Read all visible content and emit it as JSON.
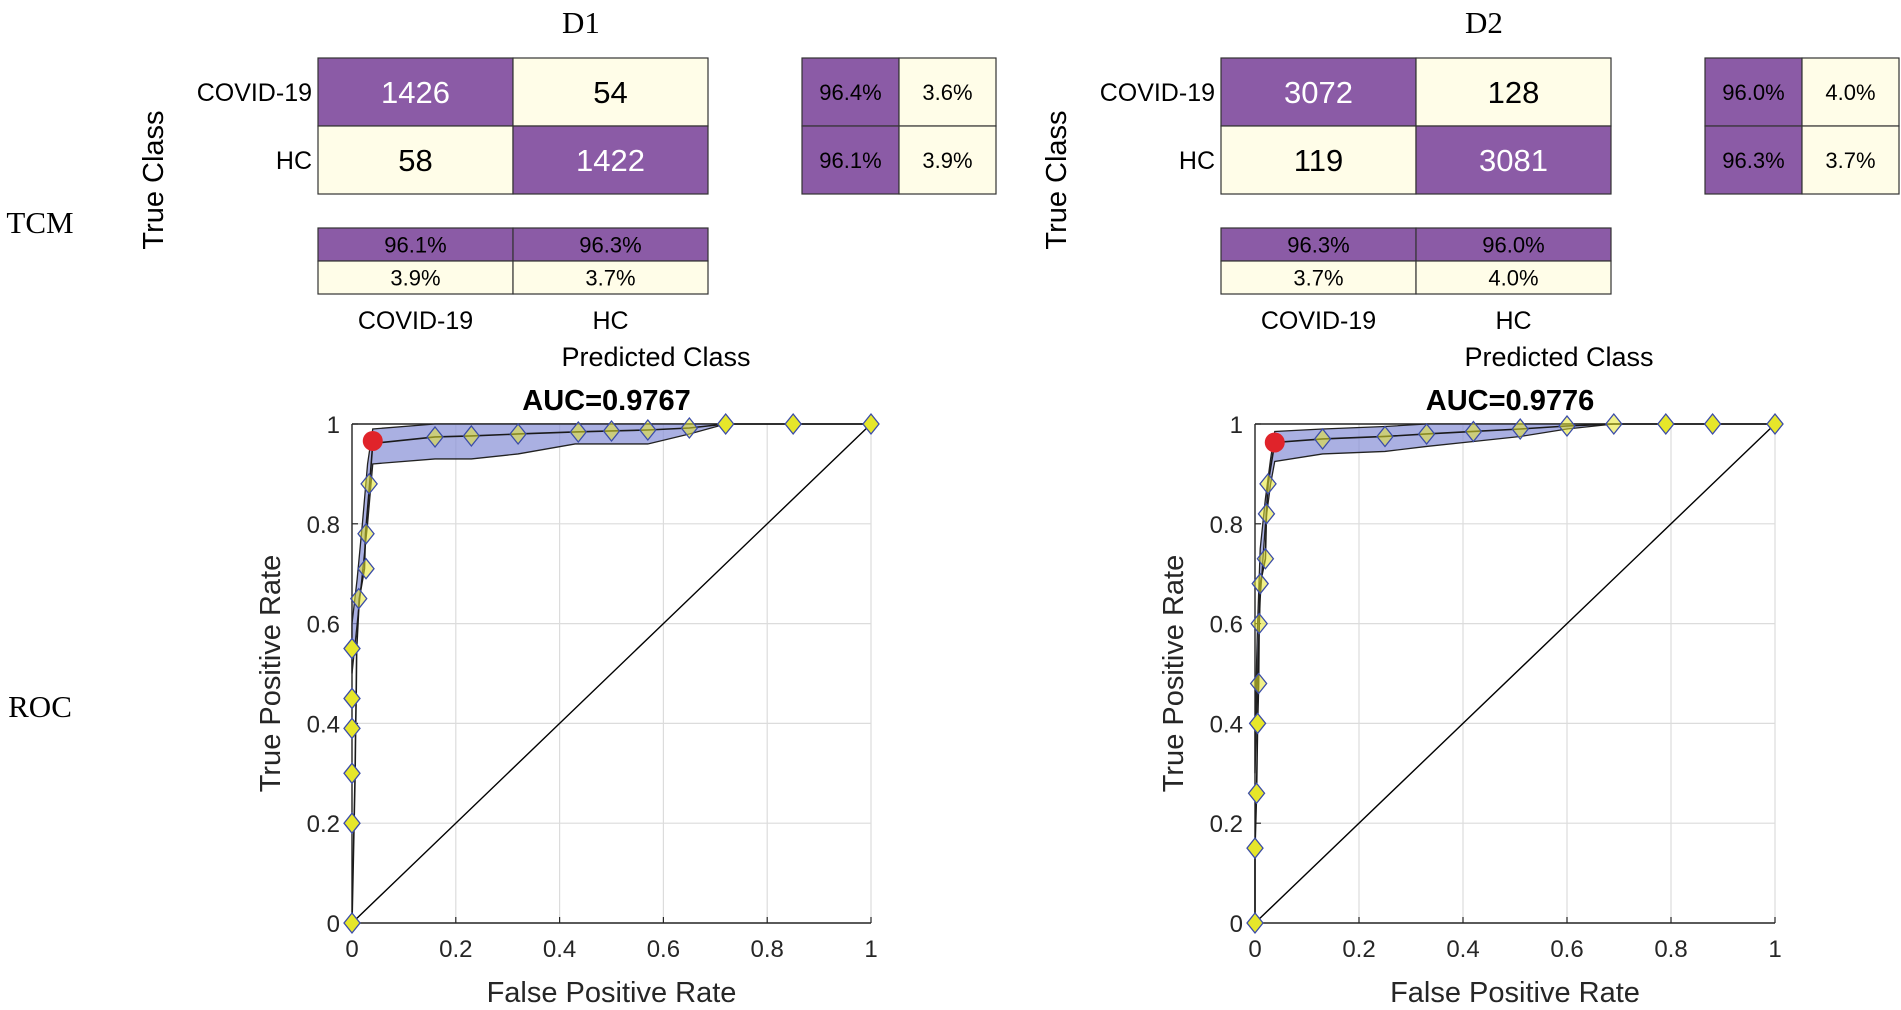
{
  "row_labels": {
    "tcm": "TCM",
    "roc": "ROC"
  },
  "colors": {
    "purple": "#8B5BA6",
    "cream": "#FFFDE8",
    "band": "#8E96D8",
    "diamond": "#E6E62A",
    "diamond_stroke": "#3B4CA8",
    "red_dot": "#E0232A",
    "grid": "#DCDCDC"
  },
  "chart_data": [
    {
      "type": "table",
      "title": "D1",
      "ylabel": "True Class",
      "xlabel": "Predicted Class",
      "classes": [
        "COVID-19",
        "HC"
      ],
      "matrix": [
        [
          "1426",
          "54"
        ],
        [
          "58",
          "1422"
        ]
      ],
      "row_summary": [
        [
          "96.4%",
          "3.6%"
        ],
        [
          "96.1%",
          "3.9%"
        ]
      ],
      "col_summary": [
        [
          "96.1%",
          "96.3%"
        ],
        [
          "3.9%",
          "3.7%"
        ]
      ]
    },
    {
      "type": "table",
      "title": "D2",
      "ylabel": "True Class",
      "xlabel": "Predicted Class",
      "classes": [
        "COVID-19",
        "HC"
      ],
      "matrix": [
        [
          "3072",
          "128"
        ],
        [
          "119",
          "3081"
        ]
      ],
      "row_summary": [
        [
          "96.0%",
          "4.0%"
        ],
        [
          "96.3%",
          "3.7%"
        ]
      ],
      "col_summary": [
        [
          "96.3%",
          "96.0%"
        ],
        [
          "3.7%",
          "4.0%"
        ]
      ]
    },
    {
      "type": "line",
      "title": "AUC=0.9767",
      "xlabel": "False Positive Rate",
      "ylabel": "True Positive Rate",
      "xlim": [
        0,
        1
      ],
      "ylim": [
        0,
        1
      ],
      "xticks": [
        "0",
        "0.2",
        "0.4",
        "0.6",
        "0.8",
        "1"
      ],
      "yticks": [
        "0",
        "0.2",
        "0.4",
        "0.6",
        "0.8",
        "1"
      ],
      "grid": true,
      "roc": {
        "x": [
          0,
          0.004,
          0.006,
          0.007,
          0.008,
          0.009,
          0.014,
          0.024,
          0.026,
          0.034,
          0.04,
          0.16,
          0.23,
          0.32,
          0.43,
          0.5,
          0.57,
          0.65,
          0.72,
          0.85,
          1
        ],
        "y": [
          0,
          0.2,
          0.3,
          0.39,
          0.45,
          0.55,
          0.65,
          0.71,
          0.78,
          0.88,
          0.961,
          0.974,
          0.976,
          0.98,
          0.984,
          0.986,
          0.988,
          0.992,
          1,
          1,
          1
        ]
      },
      "band_upper": {
        "x": [
          0,
          0.01,
          0.02,
          0.03,
          0.04,
          0.16,
          0.23,
          0.32,
          0.43,
          0.5,
          0.57,
          0.65,
          0.72,
          1
        ],
        "y": [
          0.6,
          0.69,
          0.8,
          0.92,
          0.99,
          1,
          1,
          1,
          1,
          1,
          1,
          1,
          1,
          1
        ]
      },
      "band_lower": {
        "x": [
          0,
          0.01,
          0.02,
          0.03,
          0.04,
          0.16,
          0.23,
          0.32,
          0.43,
          0.5,
          0.57,
          0.65,
          0.72,
          1
        ],
        "y": [
          0.5,
          0.6,
          0.7,
          0.8,
          0.92,
          0.93,
          0.93,
          0.94,
          0.96,
          0.96,
          0.96,
          0.98,
          1,
          1
        ]
      },
      "markers": {
        "x": [
          0,
          0,
          0,
          0,
          0,
          0,
          0.013,
          0.027,
          0.027,
          0.033,
          0.16,
          0.23,
          0.32,
          0.436,
          0.5,
          0.57,
          0.65,
          0.72,
          0.85,
          1
        ],
        "y": [
          0,
          0.2,
          0.3,
          0.39,
          0.45,
          0.55,
          0.65,
          0.71,
          0.78,
          0.88,
          0.974,
          0.976,
          0.98,
          0.984,
          0.986,
          0.988,
          0.992,
          1,
          1,
          1
        ]
      },
      "operating_point": {
        "x": 0.04,
        "y": 0.966
      }
    },
    {
      "type": "line",
      "title": "AUC=0.9776",
      "xlabel": "False Positive Rate",
      "ylabel": "True Positive Rate",
      "xlim": [
        0,
        1
      ],
      "ylim": [
        0,
        1
      ],
      "xticks": [
        "0",
        "0.2",
        "0.4",
        "0.6",
        "0.8",
        "1"
      ],
      "yticks": [
        "0",
        "0.2",
        "0.4",
        "0.6",
        "0.8",
        "1"
      ],
      "grid": true,
      "roc": {
        "x": [
          0,
          0,
          0.003,
          0.005,
          0.007,
          0.008,
          0.01,
          0.02,
          0.022,
          0.025,
          0.038,
          0.13,
          0.25,
          0.33,
          0.42,
          0.51,
          0.6,
          0.69,
          0.79,
          0.88,
          1
        ],
        "y": [
          0,
          0.15,
          0.26,
          0.4,
          0.48,
          0.6,
          0.68,
          0.73,
          0.82,
          0.88,
          0.963,
          0.97,
          0.975,
          0.98,
          0.985,
          0.99,
          0.996,
          1,
          1,
          1,
          1
        ]
      },
      "band_upper": {
        "x": [
          0,
          0.005,
          0.01,
          0.02,
          0.03,
          0.038,
          0.13,
          0.25,
          0.33,
          0.42,
          0.51,
          0.6,
          0.69,
          1
        ],
        "y": [
          0.4,
          0.6,
          0.75,
          0.85,
          0.93,
          0.985,
          0.99,
          0.995,
          1,
          1,
          1,
          1,
          1,
          1
        ]
      },
      "band_lower": {
        "x": [
          0,
          0.005,
          0.01,
          0.02,
          0.03,
          0.038,
          0.13,
          0.25,
          0.33,
          0.42,
          0.51,
          0.6,
          0.69,
          1
        ],
        "y": [
          0.3,
          0.5,
          0.65,
          0.8,
          0.88,
          0.925,
          0.94,
          0.945,
          0.955,
          0.965,
          0.975,
          0.99,
          1,
          1
        ]
      },
      "markers": {
        "x": [
          0,
          0,
          0.003,
          0.005,
          0.007,
          0.008,
          0.01,
          0.02,
          0.022,
          0.025,
          0.13,
          0.25,
          0.33,
          0.42,
          0.51,
          0.6,
          0.69,
          0.79,
          0.88,
          1
        ],
        "y": [
          0,
          0.15,
          0.26,
          0.4,
          0.48,
          0.6,
          0.68,
          0.73,
          0.82,
          0.88,
          0.97,
          0.975,
          0.98,
          0.985,
          0.99,
          0.996,
          1,
          1,
          1,
          1
        ]
      },
      "operating_point": {
        "x": 0.038,
        "y": 0.963
      }
    }
  ]
}
